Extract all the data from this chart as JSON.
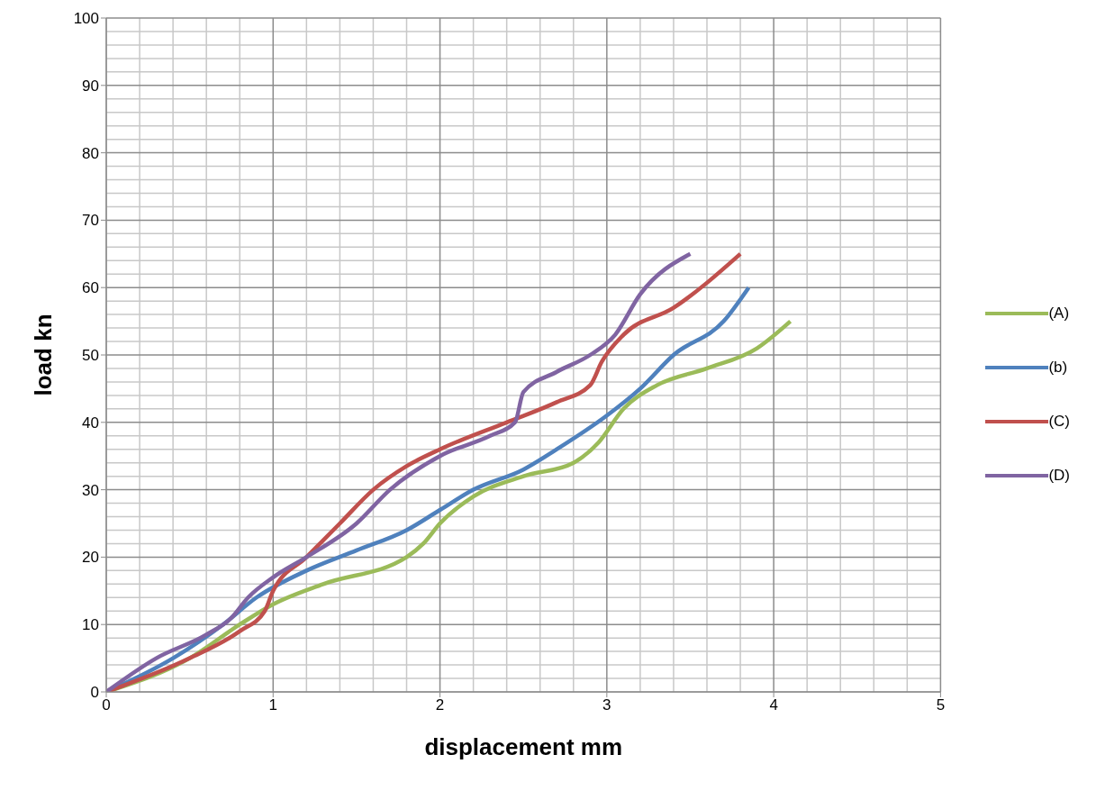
{
  "chart_data": {
    "type": "line",
    "xlabel": "displacement mm",
    "ylabel": "load kn",
    "xlim": [
      0,
      5
    ],
    "xticks": [
      0,
      1,
      2,
      3,
      4,
      5
    ],
    "ylim": [
      0,
      100
    ],
    "yticks": [
      0,
      10,
      20,
      30,
      40,
      50,
      60,
      70,
      80,
      90,
      100
    ],
    "grid": true,
    "legend": "right",
    "marker": "none",
    "line_style": "solid",
    "series": [
      {
        "name": "(A)",
        "color": "#9bbb59",
        "x": [
          0,
          0.5,
          0.8,
          1,
          1.3,
          1.8,
          1.9,
          2,
          2.2,
          2.5,
          2.8,
          2.95,
          3.1,
          3.3,
          3.6,
          3.9,
          4.1
        ],
        "values": [
          0,
          5,
          10,
          13,
          16,
          20,
          22,
          25,
          29,
          32,
          34,
          37,
          42,
          45.5,
          48,
          51,
          55
        ]
      },
      {
        "name": "(b)",
        "color": "#4f81bd",
        "x": [
          0,
          0.4,
          0.7,
          0.9,
          1.2,
          1.5,
          1.8,
          2,
          2.2,
          2.5,
          2.7,
          3,
          3.2,
          3.4,
          3.7,
          3.85
        ],
        "values": [
          0,
          5,
          10,
          14,
          18,
          21,
          24,
          27,
          30,
          33,
          36,
          41,
          45,
          50,
          55,
          60
        ]
      },
      {
        "name": "(C)",
        "color": "#c0504d",
        "x": [
          0,
          0.5,
          0.8,
          0.95,
          1,
          1.2,
          1.4,
          1.6,
          1.8,
          2,
          2.4,
          2.7,
          2.9,
          2.97,
          3.1,
          3.4,
          3.8
        ],
        "values": [
          0,
          5,
          9,
          12,
          15,
          20,
          25,
          30,
          33.5,
          36,
          40,
          43,
          45.5,
          49,
          53,
          57,
          65
        ]
      },
      {
        "name": "(D)",
        "color": "#8064a2",
        "x": [
          0,
          0.3,
          0.6,
          0.75,
          0.85,
          1,
          1.2,
          1.5,
          1.7,
          2,
          2.3,
          2.45,
          2.5,
          2.7,
          2.9,
          3.05,
          3.2,
          3.5
        ],
        "values": [
          0,
          5,
          8.5,
          11,
          14,
          17,
          20,
          25,
          30,
          35,
          38,
          40,
          44.5,
          47.5,
          50,
          53,
          59,
          65
        ]
      }
    ]
  }
}
